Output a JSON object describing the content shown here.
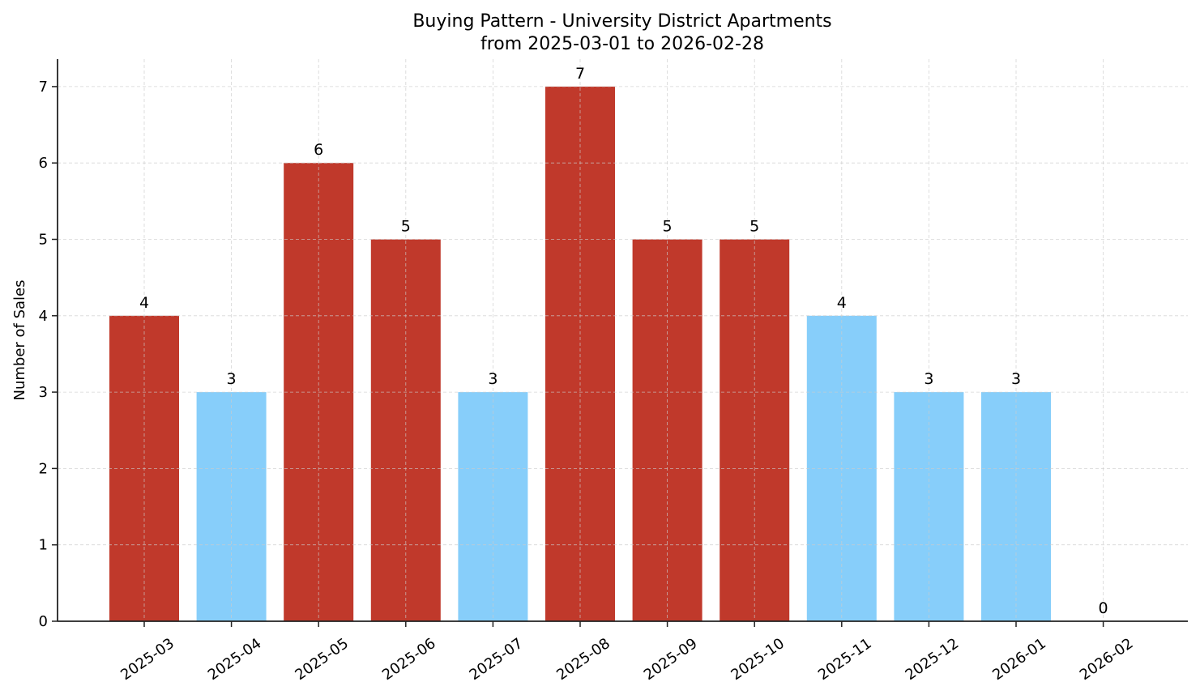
{
  "chart_data": {
    "type": "bar",
    "title": "Buying Pattern - University District Apartments",
    "subtitle": "from 2025-03-01 to 2026-02-28",
    "xlabel": "",
    "ylabel": "Number of Sales",
    "ylim": [
      0,
      7.36
    ],
    "yticks": [
      0,
      1,
      2,
      3,
      4,
      5,
      6,
      7
    ],
    "grid": true,
    "legend": null,
    "categories": [
      "2025-03",
      "2025-04",
      "2025-05",
      "2025-06",
      "2025-07",
      "2025-08",
      "2025-09",
      "2025-10",
      "2025-11",
      "2025-12",
      "2026-01",
      "2026-02"
    ],
    "values": [
      4,
      3,
      6,
      5,
      3,
      7,
      5,
      5,
      4,
      3,
      3,
      0
    ],
    "bar_colors": [
      "#c0392b",
      "#87cefa",
      "#c0392b",
      "#c0392b",
      "#87cefa",
      "#c0392b",
      "#c0392b",
      "#c0392b",
      "#87cefa",
      "#87cefa",
      "#87cefa",
      "#87cefa"
    ],
    "colors": {
      "high": "#c0392b",
      "low": "#87cefa"
    }
  }
}
